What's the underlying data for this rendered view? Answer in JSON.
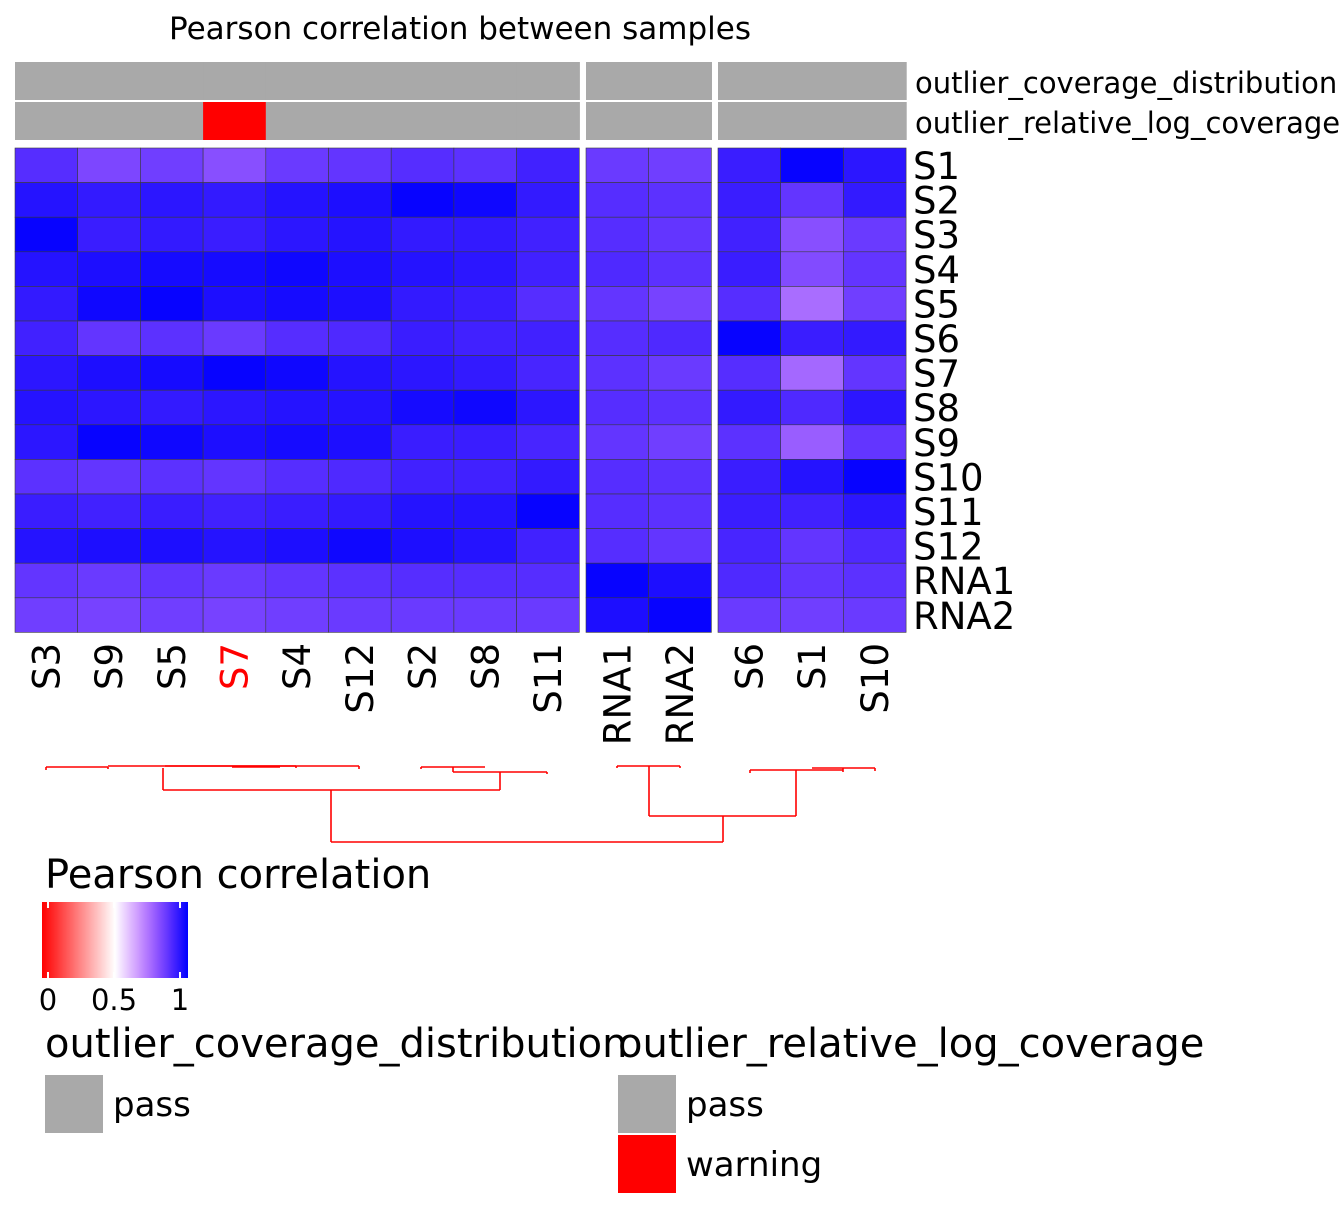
{
  "chart_data": {
    "type": "heatmap",
    "title": "Pearson correlation between samples",
    "rows": [
      "S1",
      "S2",
      "S3",
      "S4",
      "S5",
      "S6",
      "S7",
      "S8",
      "S9",
      "S10",
      "S11",
      "S12",
      "RNA1",
      "RNA2"
    ],
    "column_groups": [
      [
        "S3",
        "S9",
        "S5",
        "S7",
        "S4",
        "S12",
        "S2",
        "S8",
        "S11"
      ],
      [
        "RNA1",
        "RNA2"
      ],
      [
        "S6",
        "S1",
        "S10"
      ]
    ],
    "highlighted_columns": [
      "S7"
    ],
    "values": [
      [
        0.88,
        0.82,
        0.84,
        0.8,
        0.85,
        0.86,
        0.88,
        0.87,
        0.91,
        0.85,
        0.84,
        0.92,
        0.99,
        0.94
      ],
      [
        0.95,
        0.93,
        0.94,
        0.93,
        0.95,
        0.96,
        0.99,
        0.98,
        0.93,
        0.88,
        0.87,
        0.92,
        0.86,
        0.93
      ],
      [
        0.99,
        0.92,
        0.93,
        0.92,
        0.94,
        0.95,
        0.93,
        0.93,
        0.91,
        0.88,
        0.86,
        0.91,
        0.8,
        0.85
      ],
      [
        0.95,
        0.96,
        0.97,
        0.97,
        0.98,
        0.96,
        0.95,
        0.94,
        0.91,
        0.89,
        0.87,
        0.92,
        0.81,
        0.86
      ],
      [
        0.93,
        0.98,
        0.99,
        0.96,
        0.97,
        0.96,
        0.93,
        0.92,
        0.88,
        0.86,
        0.83,
        0.88,
        0.74,
        0.84
      ],
      [
        0.91,
        0.86,
        0.87,
        0.85,
        0.88,
        0.89,
        0.92,
        0.91,
        0.91,
        0.88,
        0.89,
        0.99,
        0.92,
        0.93
      ],
      [
        0.94,
        0.96,
        0.97,
        0.99,
        0.98,
        0.95,
        0.94,
        0.93,
        0.9,
        0.87,
        0.85,
        0.88,
        0.75,
        0.86
      ],
      [
        0.95,
        0.94,
        0.93,
        0.94,
        0.95,
        0.95,
        0.97,
        0.98,
        0.94,
        0.88,
        0.87,
        0.93,
        0.89,
        0.94
      ],
      [
        0.94,
        0.99,
        0.98,
        0.96,
        0.97,
        0.96,
        0.92,
        0.92,
        0.9,
        0.86,
        0.84,
        0.87,
        0.77,
        0.86
      ],
      [
        0.87,
        0.86,
        0.87,
        0.86,
        0.88,
        0.89,
        0.91,
        0.91,
        0.93,
        0.88,
        0.87,
        0.92,
        0.95,
        0.99
      ],
      [
        0.92,
        0.91,
        0.92,
        0.91,
        0.92,
        0.93,
        0.95,
        0.95,
        0.99,
        0.88,
        0.87,
        0.92,
        0.91,
        0.94
      ],
      [
        0.95,
        0.96,
        0.96,
        0.95,
        0.96,
        0.98,
        0.96,
        0.95,
        0.91,
        0.88,
        0.86,
        0.9,
        0.86,
        0.89
      ],
      [
        0.86,
        0.85,
        0.86,
        0.85,
        0.86,
        0.87,
        0.88,
        0.88,
        0.88,
        0.99,
        0.96,
        0.89,
        0.86,
        0.87
      ],
      [
        0.84,
        0.83,
        0.84,
        0.83,
        0.84,
        0.85,
        0.85,
        0.85,
        0.85,
        0.96,
        0.99,
        0.85,
        0.84,
        0.85
      ]
    ],
    "colorbar": {
      "title": "Pearson correlation",
      "range": [
        0,
        1
      ],
      "ticks": [
        "0",
        "0.5",
        "1"
      ],
      "colors": [
        "#ff0000",
        "#ffffff",
        "#0000ff"
      ]
    },
    "annotations": [
      {
        "name": "outlier_coverage_distribution",
        "values": {
          "S3": "pass",
          "S9": "pass",
          "S5": "pass",
          "S7": "pass",
          "S4": "pass",
          "S12": "pass",
          "S2": "pass",
          "S8": "pass",
          "S11": "pass",
          "RNA1": "pass",
          "RNA2": "pass",
          "S6": "pass",
          "S1": "pass",
          "S10": "pass"
        },
        "legend": [
          {
            "label": "pass",
            "color": "#a9a9a9"
          }
        ]
      },
      {
        "name": "outlier_relative_log_coverage",
        "values": {
          "S3": "pass",
          "S9": "pass",
          "S5": "pass",
          "S7": "warning",
          "S4": "pass",
          "S12": "pass",
          "S2": "pass",
          "S8": "pass",
          "S11": "pass",
          "RNA1": "pass",
          "RNA2": "pass",
          "S6": "pass",
          "S1": "pass",
          "S10": "pass"
        },
        "legend": [
          {
            "label": "pass",
            "color": "#a9a9a9"
          },
          {
            "label": "warning",
            "color": "#ff0000"
          }
        ]
      }
    ],
    "dendrogram_color": "#ff0000"
  }
}
